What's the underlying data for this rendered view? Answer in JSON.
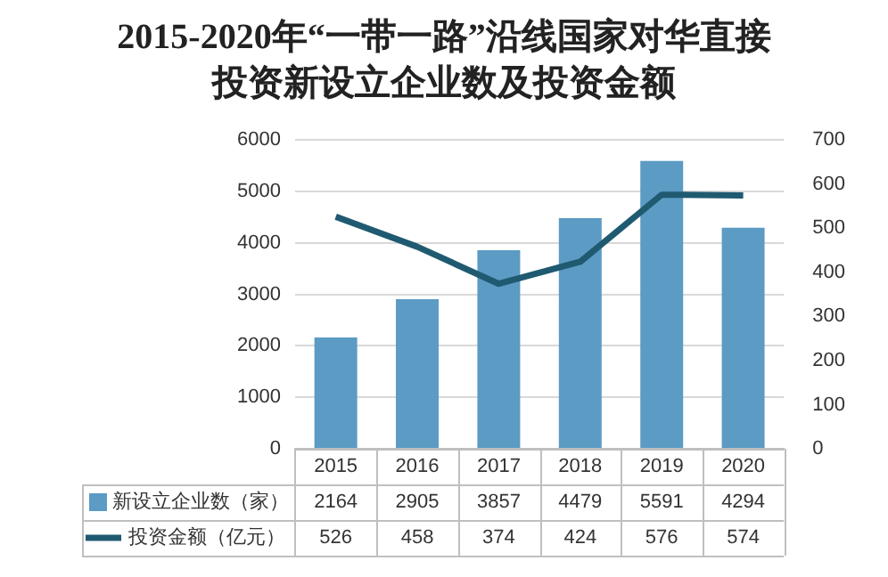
{
  "chart_data": {
    "type": "bar",
    "title": "2015-2020年“一带一路”沿线国家对华直接投资新设立企业数及投资金额",
    "categories": [
      "2015",
      "2016",
      "2017",
      "2018",
      "2019",
      "2020"
    ],
    "series": [
      {
        "name": "新设立企业数（家）",
        "color": "#5b9bc4",
        "values": [
          2164,
          2905,
          3857,
          4479,
          5591,
          4294
        ]
      },
      {
        "name": "投资金额（亿元）",
        "type": "line",
        "axis": "y2",
        "color": "#1f5a70",
        "values": [
          526,
          458,
          374,
          424,
          576,
          574
        ]
      }
    ],
    "ylim": [
      0,
      6000
    ],
    "yticks": [
      0,
      1000,
      2000,
      3000,
      4000,
      5000,
      6000
    ],
    "y2lim": [
      0,
      700
    ],
    "y2ticks": [
      0,
      100,
      200,
      300,
      400,
      500,
      600,
      700
    ],
    "grid": "y",
    "legend": "bottom",
    "data_labels": true,
    "marker": "none",
    "line_style": "solid"
  }
}
